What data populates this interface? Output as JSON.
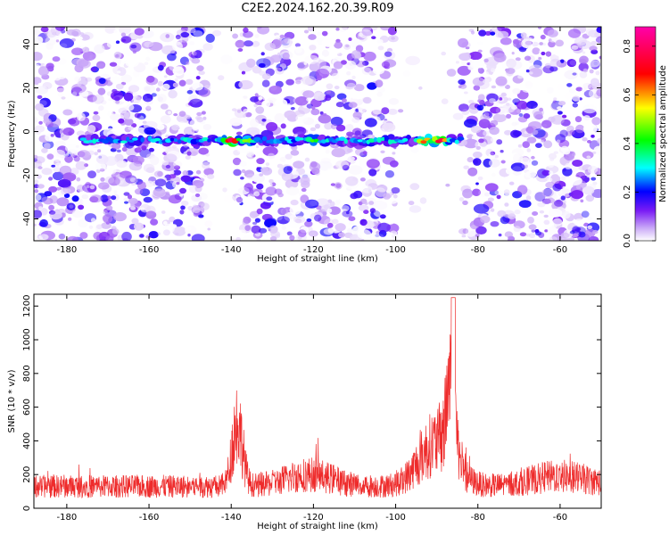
{
  "title": "C2E2.2024.162.20.39.R09",
  "colors": {
    "snr_line": "#ee2b2b",
    "colormap": [
      "#ffffff",
      "#b98ff7",
      "#7a1cf5",
      "#0000ff",
      "#00ffff",
      "#00ff00",
      "#ffff00",
      "#ff0000",
      "#ff00aa"
    ]
  },
  "chart_data": [
    {
      "type": "heatmap",
      "xlabel": "Height of straight line (km)",
      "ylabel": "Frequency (Hz)",
      "xlim": [
        -188,
        -50
      ],
      "ylim": [
        -50,
        48
      ],
      "xticks": [
        -180,
        -160,
        -140,
        -120,
        -100,
        -80,
        -60
      ],
      "yticks": [
        -40,
        -20,
        0,
        20,
        40
      ],
      "colorbar": {
        "label": "Normalized spectral amplitude",
        "range": [
          0.0,
          0.88
        ],
        "ticks": [
          0.0,
          0.2,
          0.4,
          0.6,
          0.8
        ]
      },
      "gaps_x": [
        [
          -145,
          -139
        ],
        [
          -100,
          -84
        ]
      ],
      "signal_band": {
        "frequency": -4,
        "x_range": [
          -176,
          -84
        ],
        "peaks": [
          {
            "x": -140,
            "value": 0.8
          },
          {
            "x": -136,
            "value": 0.5
          },
          {
            "x": -120,
            "value": 0.45
          },
          {
            "x": -106,
            "value": 0.35
          },
          {
            "x": -93,
            "value": 0.65
          },
          {
            "x": -89,
            "value": 0.8
          }
        ]
      }
    },
    {
      "type": "line",
      "xlabel": "Height of straight line (km)",
      "ylabel": "SNR (10 * v/v)",
      "xlim": [
        -188,
        -50
      ],
      "ylim": [
        0,
        1270
      ],
      "xticks": [
        -180,
        -160,
        -140,
        -120,
        -100,
        -80,
        -60
      ],
      "yticks": [
        0,
        200,
        400,
        600,
        800,
        1000,
        1200
      ],
      "baseline": 130,
      "peaks": [
        {
          "x": -140,
          "value": 700
        },
        {
          "x": -138,
          "value": 760
        },
        {
          "x": -93,
          "value": 600
        },
        {
          "x": -90,
          "value": 800
        },
        {
          "x": -87,
          "value": 1000
        },
        {
          "x": -86,
          "value": 1250
        },
        {
          "x": -84,
          "value": 750
        }
      ]
    }
  ]
}
